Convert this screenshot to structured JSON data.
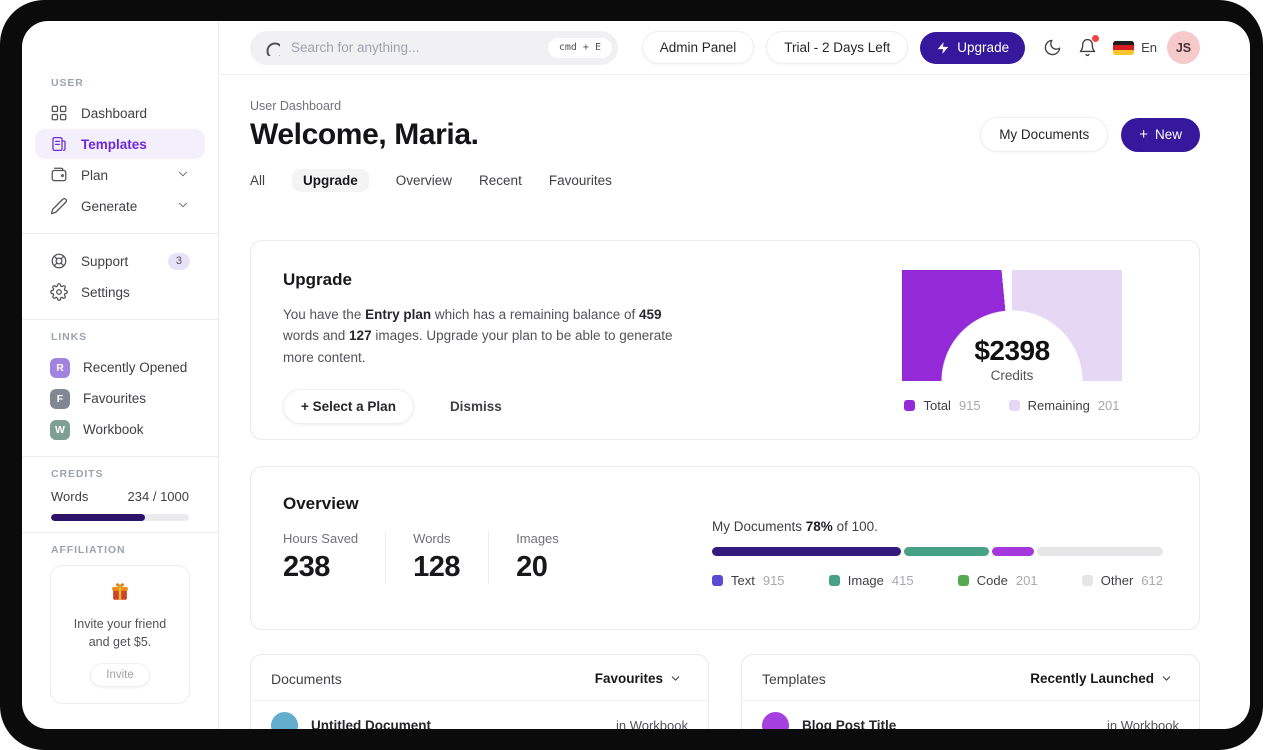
{
  "topbar": {
    "search": {
      "placeholder": "Search for anything...",
      "shortcut": "cmd + E"
    },
    "admin_button": "Admin Panel",
    "trial_button": "Trial - 2 Days Left",
    "upgrade_button": "Upgrade",
    "language": "En",
    "avatar_initials": "JS"
  },
  "sidebar": {
    "section_user": "USER",
    "section_links": "LINKS",
    "section_credits": "CREDITS",
    "section_affiliation": "AFFILIATION",
    "nav": [
      {
        "label": "Dashboard",
        "icon": "grid-icon",
        "active": false
      },
      {
        "label": "Templates",
        "icon": "templates-icon",
        "active": true
      },
      {
        "label": "Plan",
        "icon": "wallet-icon",
        "chevron": true
      },
      {
        "label": "Generate",
        "icon": "pencil-icon",
        "chevron": true
      }
    ],
    "nav_secondary": [
      {
        "label": "Support",
        "icon": "lifebuoy-icon",
        "badge": "3"
      },
      {
        "label": "Settings",
        "icon": "gear-icon"
      }
    ],
    "links": [
      {
        "label": "Recently Opened",
        "initial": "R",
        "color": "#a284e0"
      },
      {
        "label": "Favourites",
        "initial": "F",
        "color": "#818893"
      },
      {
        "label": "Workbook",
        "initial": "W",
        "color": "#7f9e94"
      }
    ],
    "credits": {
      "label": "Words",
      "value": "234 / 1000",
      "fill_percent": 68,
      "bar_color": "#2d1269"
    },
    "affiliation": {
      "line1": "Invite your friend",
      "line2": "and get $5.",
      "button": "Invite"
    }
  },
  "header": {
    "breadcrumb": "User Dashboard",
    "title": "Welcome, Maria.",
    "my_documents_button": "My Documents",
    "new_button": "New"
  },
  "tabs": [
    {
      "label": "All"
    },
    {
      "label": "Upgrade",
      "active": true
    },
    {
      "label": "Overview"
    },
    {
      "label": "Recent"
    },
    {
      "label": "Favourites"
    }
  ],
  "upgrade_card": {
    "title": "Upgrade",
    "body": [
      {
        "text": "You have the "
      },
      {
        "text": "Entry plan",
        "bold": true
      },
      {
        "text": " which has a remaining balance of "
      },
      {
        "text": "459",
        "bold": true
      },
      {
        "text": " words and "
      },
      {
        "text": "127",
        "bold": true
      },
      {
        "text": " images. Upgrade your plan to be able to generate more content."
      }
    ],
    "select_plan_button": "Select a Plan",
    "dismiss_button": "Dismiss",
    "chart_data": {
      "type": "gauge",
      "center_value": "$2398",
      "center_label": "Credits",
      "dark_fraction": 0.47,
      "gap_fraction": 0.03,
      "series": [
        {
          "name": "Total",
          "value": 915,
          "color": "#9429d8"
        },
        {
          "name": "Remaining",
          "value": 201,
          "color": "#e6d7f5"
        }
      ]
    }
  },
  "overview_card": {
    "title": "Overview",
    "stats": [
      {
        "label": "Hours Saved",
        "value": "238"
      },
      {
        "label": "Words",
        "value": "128"
      },
      {
        "label": "Images",
        "value": "20"
      }
    ],
    "progress_title": [
      {
        "text": "My Documents "
      },
      {
        "text": "78%",
        "bold": true
      },
      {
        "text": " of 100."
      }
    ],
    "chart_data": {
      "type": "stacked_bar",
      "series": [
        {
          "name": "Text",
          "value": 915,
          "bar_color": "#321b7d",
          "legend_color": "#5b4bd4"
        },
        {
          "name": "Image",
          "value": 415,
          "bar_color": "#47a184",
          "legend_color": "#47a184"
        },
        {
          "name": "Code",
          "value": 201,
          "bar_color": "#a438dd",
          "legend_color": "#55a94f"
        },
        {
          "name": "Other",
          "value": 612,
          "bar_color": "#e5e5e8",
          "legend_color": "#e5e5e8"
        }
      ]
    }
  },
  "documents_card": {
    "title": "Documents",
    "filter": "Favourites",
    "items": [
      {
        "title": "Untitled Document",
        "location": "in Workbook",
        "color": "#64aecd"
      }
    ]
  },
  "templates_card": {
    "title": "Templates",
    "filter": "Recently Launched",
    "items": [
      {
        "title": "Blog Post Title",
        "location": "in Workbook",
        "color": "#a43fe0"
      }
    ]
  }
}
